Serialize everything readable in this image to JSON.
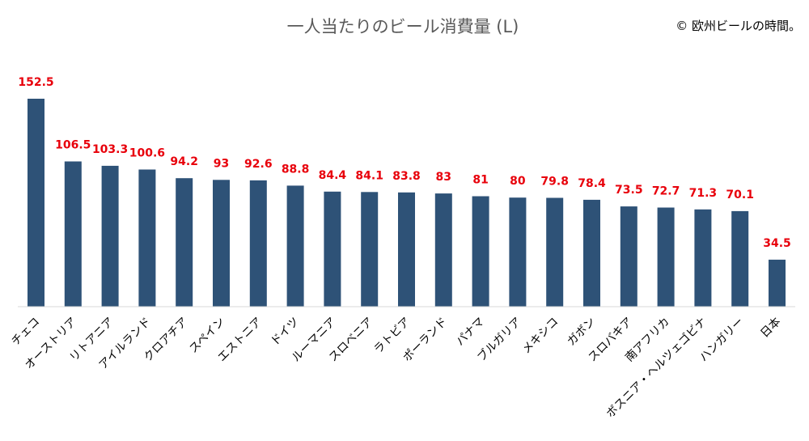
{
  "credit": "© 欧州ビールの時間。",
  "chart_data": {
    "type": "bar",
    "title": "一人当たりのビール消費量 (L)",
    "xlabel": "",
    "ylabel": "",
    "ylim": [
      0,
      152.5
    ],
    "grid": false,
    "legend": "none",
    "bar_color": "#2e5277",
    "label_color": "#e8000b",
    "categories": [
      "チェコ",
      "オーストリア",
      "リトアニア",
      "アイルランド",
      "クロアチア",
      "スペイン",
      "エストニア",
      "ドイツ",
      "ルーマニア",
      "スロベニア",
      "ラトビア",
      "ポーランド",
      "パナマ",
      "ブルガリア",
      "メキシコ",
      "ガボン",
      "スロバキア",
      "南アフリカ",
      "ボスニア・ヘルツェゴビナ",
      "ハンガリー",
      "日本"
    ],
    "values": [
      152.5,
      106.5,
      103.3,
      100.6,
      94.2,
      93,
      92.6,
      88.8,
      84.4,
      84.1,
      83.8,
      83,
      81,
      80,
      79.8,
      78.4,
      73.5,
      72.7,
      71.3,
      70.1,
      34.5
    ],
    "value_labels": [
      "152.5",
      "106.5",
      "103.3",
      "100.6",
      "94.2",
      "93",
      "92.6",
      "88.8",
      "84.4",
      "84.1",
      "83.8",
      "83",
      "81",
      "80",
      "79.8",
      "78.4",
      "73.5",
      "72.7",
      "71.3",
      "70.1",
      "34.5"
    ]
  }
}
